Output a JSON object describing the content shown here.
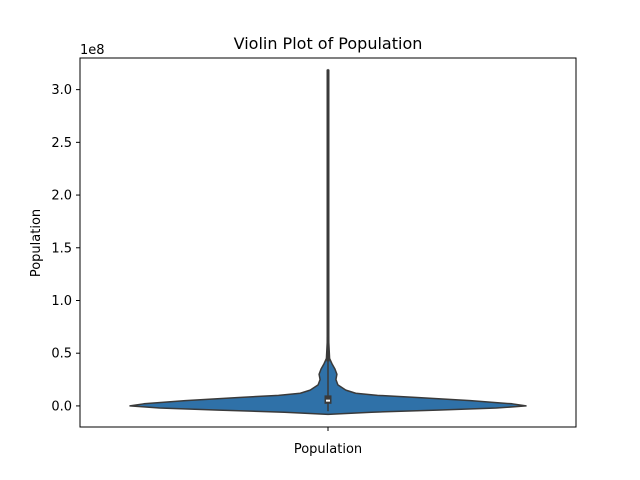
{
  "chart_data": {
    "type": "violin",
    "title": "Violin Plot of Population",
    "xlabel": "",
    "ylabel": "Population",
    "category": "Population",
    "y_offset_text": "1e8",
    "ylim": [
      -0.2,
      3.3
    ],
    "y_unit_multiplier": 100000000,
    "yticks": [
      0.0,
      0.5,
      1.0,
      1.5,
      2.0,
      2.5,
      3.0
    ],
    "ytick_labels": [
      "0.0",
      "0.5",
      "1.0",
      "1.5",
      "2.0",
      "2.5",
      "3.0"
    ],
    "grid": false,
    "legend": "none",
    "fill_color": "#2f71a8",
    "edge_color": "#3a3a3a",
    "box_color": "#3a3a3a",
    "median_color": "#ffffff",
    "summary": {
      "min": -0.05,
      "max": 3.19,
      "q1": 0.02,
      "median": 0.05,
      "q3": 0.1,
      "whisker_low": -0.05,
      "whisker_high": 0.42
    },
    "density_profile": [
      {
        "y": -0.08,
        "w": 0.0
      },
      {
        "y": -0.06,
        "w": 0.22
      },
      {
        "y": -0.04,
        "w": 0.55
      },
      {
        "y": -0.02,
        "w": 0.85
      },
      {
        "y": 0.0,
        "w": 1.0
      },
      {
        "y": 0.02,
        "w": 0.93
      },
      {
        "y": 0.05,
        "w": 0.72
      },
      {
        "y": 0.08,
        "w": 0.45
      },
      {
        "y": 0.1,
        "w": 0.25
      },
      {
        "y": 0.12,
        "w": 0.14
      },
      {
        "y": 0.15,
        "w": 0.09
      },
      {
        "y": 0.2,
        "w": 0.05
      },
      {
        "y": 0.25,
        "w": 0.04
      },
      {
        "y": 0.3,
        "w": 0.045
      },
      {
        "y": 0.35,
        "w": 0.035
      },
      {
        "y": 0.4,
        "w": 0.02
      },
      {
        "y": 0.45,
        "w": 0.008
      },
      {
        "y": 0.6,
        "w": 0.004
      },
      {
        "y": 1.0,
        "w": 0.003
      },
      {
        "y": 2.0,
        "w": 0.003
      },
      {
        "y": 3.0,
        "w": 0.003
      },
      {
        "y": 3.19,
        "w": 0.0
      }
    ]
  }
}
